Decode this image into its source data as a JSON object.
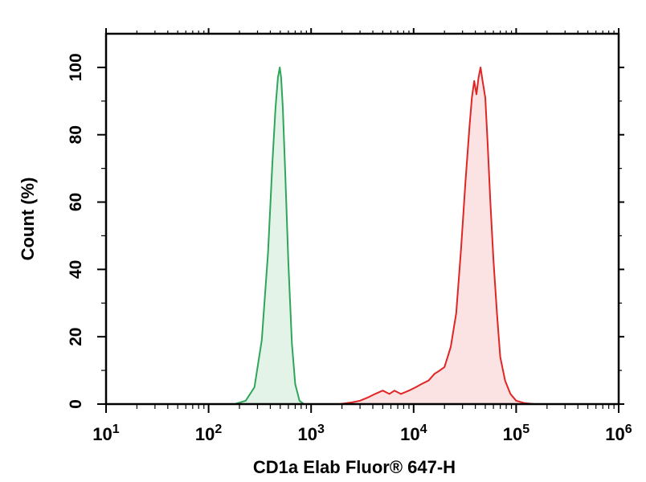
{
  "chart_data": {
    "type": "area",
    "title": "",
    "xlabel": "CD1a Elab Fluor® 647-H",
    "ylabel": "Count (%)",
    "x_scale": "log",
    "xlim": [
      10,
      1000000
    ],
    "ylim": [
      0,
      110
    ],
    "x_ticks": [
      {
        "value": 10,
        "base": "10",
        "exp": "1"
      },
      {
        "value": 100,
        "base": "10",
        "exp": "2"
      },
      {
        "value": 1000,
        "base": "10",
        "exp": "3"
      },
      {
        "value": 10000,
        "base": "10",
        "exp": "4"
      },
      {
        "value": 100000,
        "base": "10",
        "exp": "5"
      },
      {
        "value": 1000000,
        "base": "10",
        "exp": "6"
      }
    ],
    "y_ticks": [
      "0",
      "20",
      "40",
      "60",
      "80",
      "100"
    ],
    "grid": false,
    "legend": "none",
    "series": [
      {
        "color": "#2ea65a",
        "fill": "#e3f3e7",
        "x": [
          180,
          230,
          280,
          330,
          380,
          420,
          450,
          475,
          495,
          510,
          530,
          560,
          600,
          650,
          700,
          770,
          850
        ],
        "y": [
          0,
          1,
          5,
          19,
          45,
          72,
          88,
          97,
          100,
          97,
          88,
          68,
          42,
          18,
          6,
          1,
          0
        ]
      },
      {
        "color": "#e02525",
        "fill": "#fbe3e3",
        "x": [
          1900,
          2500,
          3000,
          3600,
          4200,
          5000,
          5800,
          6500,
          7500,
          9000,
          10500,
          12000,
          14000,
          16000,
          18000,
          20000,
          23000,
          26000,
          29000,
          32000,
          35000,
          37000,
          39000,
          41000,
          43000,
          45000,
          47000,
          50000,
          53000,
          56000,
          60000,
          65000,
          70000,
          78000,
          88000,
          100000,
          120000,
          150000
        ],
        "y": [
          0,
          0.5,
          1,
          2,
          3,
          4,
          3,
          4,
          3,
          4,
          5,
          6,
          7,
          9,
          10,
          11,
          17,
          27,
          46,
          66,
          82,
          91,
          96,
          92,
          97,
          100,
          96,
          91,
          76,
          60,
          43,
          27,
          14,
          7,
          3,
          1,
          0.3,
          0
        ]
      }
    ]
  }
}
